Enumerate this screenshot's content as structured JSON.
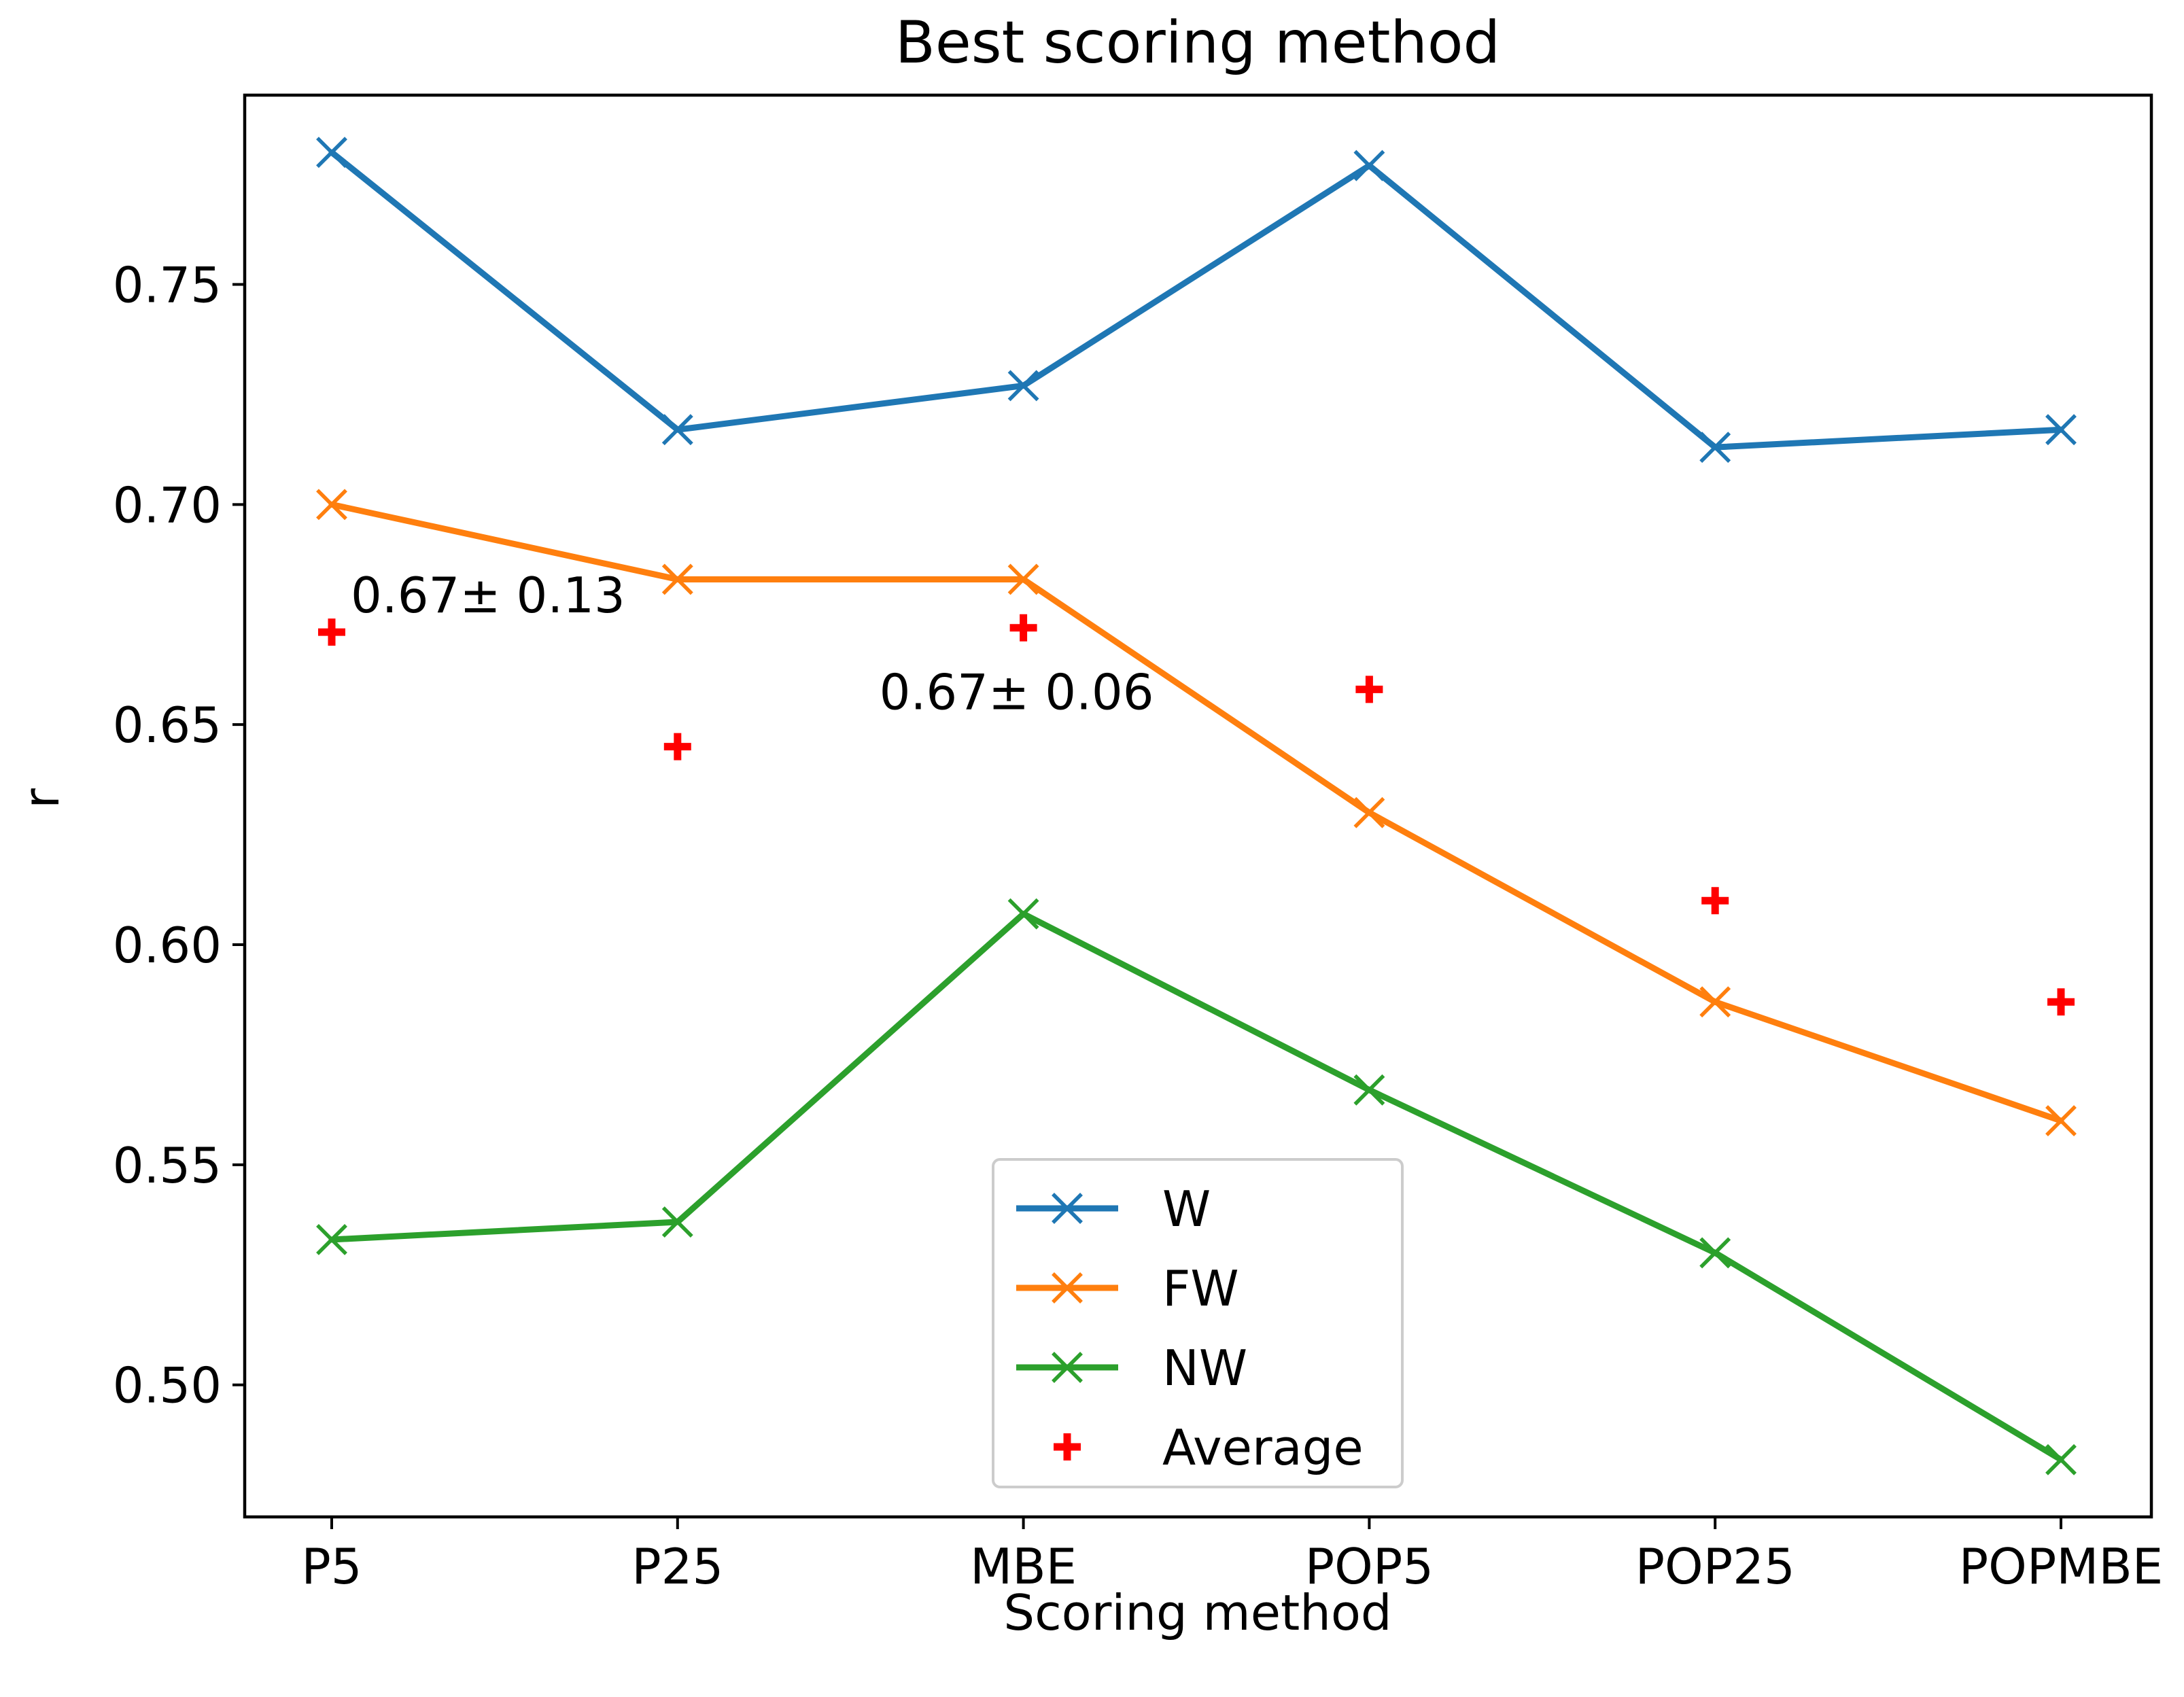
{
  "chart_data": {
    "type": "line",
    "title": "Best scoring method",
    "xlabel": "Scoring method",
    "ylabel": "r",
    "categories": [
      "P5",
      "P25",
      "MBE",
      "POP5",
      "POP25",
      "POPMBE"
    ],
    "ylim": [
      0.47,
      0.793
    ],
    "yticks": [
      0.5,
      0.55,
      0.6,
      0.65,
      0.7,
      0.75
    ],
    "ytick_labels": [
      "0.50",
      "0.55",
      "0.60",
      "0.65",
      "0.70",
      "0.75"
    ],
    "grid": false,
    "legend_position": "lower-center",
    "series": [
      {
        "name": "W",
        "color": "#1f77b4",
        "marker": "x",
        "values": [
          0.78,
          0.717,
          0.727,
          0.777,
          0.713,
          0.717
        ]
      },
      {
        "name": "FW",
        "color": "#ff7f0e",
        "marker": "x",
        "values": [
          0.7,
          0.683,
          0.683,
          0.63,
          0.587,
          0.56
        ]
      },
      {
        "name": "NW",
        "color": "#2ca02c",
        "marker": "x",
        "values": [
          0.533,
          0.537,
          0.607,
          0.567,
          0.53,
          0.483
        ]
      },
      {
        "name": "Average",
        "color": "#ff0000",
        "marker": "+",
        "line": false,
        "values": [
          0.671,
          0.645,
          0.672,
          0.658,
          0.61,
          0.587
        ]
      }
    ],
    "annotations": [
      {
        "text": "0.67± 0.13",
        "x": "P5",
        "y": 0.6755,
        "anchor": "start"
      },
      {
        "text": "0.67± 0.06",
        "x": "MBE",
        "y": 0.6535,
        "anchor": "middle"
      }
    ]
  }
}
